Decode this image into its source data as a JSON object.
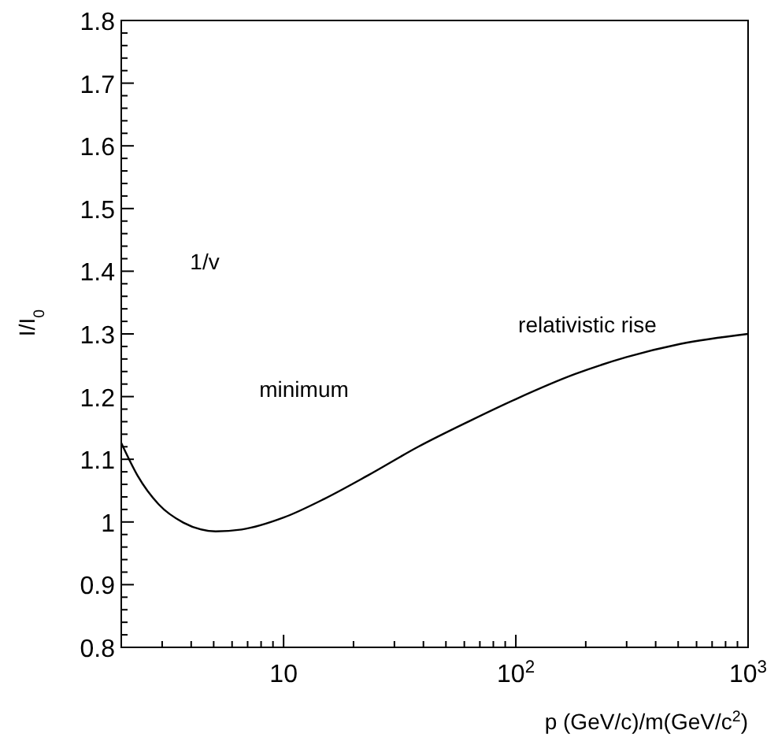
{
  "chart_data": {
    "type": "line",
    "xlabel": "p (GeV/c)/m(GeV/c$^{2}$)",
    "ylabel": "I/I$_{0}$",
    "log": "x",
    "grid": false,
    "marker": "none",
    "line_style": "solid",
    "xlim": [
      2,
      1000
    ],
    "ylim": [
      0.8,
      1.8
    ],
    "xticks": [
      {
        "value": 2,
        "label": null
      },
      {
        "value": 3,
        "label": null
      },
      {
        "value": 4,
        "label": null
      },
      {
        "value": 5,
        "label": null
      },
      {
        "value": 6,
        "label": null
      },
      {
        "value": 7,
        "label": null
      },
      {
        "value": 8,
        "label": null
      },
      {
        "value": 9,
        "label": null
      },
      {
        "value": 10,
        "label": "10"
      },
      {
        "value": 20,
        "label": null
      },
      {
        "value": 30,
        "label": null
      },
      {
        "value": 40,
        "label": null
      },
      {
        "value": 50,
        "label": null
      },
      {
        "value": 60,
        "label": null
      },
      {
        "value": 70,
        "label": null
      },
      {
        "value": 80,
        "label": null
      },
      {
        "value": 90,
        "label": null
      },
      {
        "value": 100,
        "label": "10$^{2}$"
      },
      {
        "value": 200,
        "label": null
      },
      {
        "value": 300,
        "label": null
      },
      {
        "value": 400,
        "label": null
      },
      {
        "value": 500,
        "label": null
      },
      {
        "value": 600,
        "label": null
      },
      {
        "value": 700,
        "label": null
      },
      {
        "value": 800,
        "label": null
      },
      {
        "value": 900,
        "label": null
      },
      {
        "value": 1000,
        "label": "10$^{3}$"
      }
    ],
    "yticks": [
      {
        "value": 0.8,
        "label": "0.8"
      },
      {
        "value": 0.82,
        "label": null
      },
      {
        "value": 0.84,
        "label": null
      },
      {
        "value": 0.86,
        "label": null
      },
      {
        "value": 0.88,
        "label": null
      },
      {
        "value": 0.9,
        "label": "0.9"
      },
      {
        "value": 0.92,
        "label": null
      },
      {
        "value": 0.94,
        "label": null
      },
      {
        "value": 0.96,
        "label": null
      },
      {
        "value": 0.98,
        "label": null
      },
      {
        "value": 1,
        "label": "1"
      },
      {
        "value": 1.02,
        "label": null
      },
      {
        "value": 1.04,
        "label": null
      },
      {
        "value": 1.06,
        "label": null
      },
      {
        "value": 1.08,
        "label": null
      },
      {
        "value": 1.1,
        "label": "1.1"
      },
      {
        "value": 1.12,
        "label": null
      },
      {
        "value": 1.14,
        "label": null
      },
      {
        "value": 1.16,
        "label": null
      },
      {
        "value": 1.18,
        "label": null
      },
      {
        "value": 1.2,
        "label": "1.2"
      },
      {
        "value": 1.22,
        "label": null
      },
      {
        "value": 1.24,
        "label": null
      },
      {
        "value": 1.26,
        "label": null
      },
      {
        "value": 1.28,
        "label": null
      },
      {
        "value": 1.3,
        "label": "1.3"
      },
      {
        "value": 1.32,
        "label": null
      },
      {
        "value": 1.34,
        "label": null
      },
      {
        "value": 1.36,
        "label": null
      },
      {
        "value": 1.38,
        "label": null
      },
      {
        "value": 1.4,
        "label": "1.4"
      },
      {
        "value": 1.42,
        "label": null
      },
      {
        "value": 1.44,
        "label": null
      },
      {
        "value": 1.46,
        "label": null
      },
      {
        "value": 1.48,
        "label": null
      },
      {
        "value": 1.5,
        "label": "1.5"
      },
      {
        "value": 1.52,
        "label": null
      },
      {
        "value": 1.54,
        "label": null
      },
      {
        "value": 1.56,
        "label": null
      },
      {
        "value": 1.58,
        "label": null
      },
      {
        "value": 1.6,
        "label": "1.6"
      },
      {
        "value": 1.62,
        "label": null
      },
      {
        "value": 1.64,
        "label": null
      },
      {
        "value": 1.66,
        "label": null
      },
      {
        "value": 1.68,
        "label": null
      },
      {
        "value": 1.7,
        "label": "1.7"
      },
      {
        "value": 1.72,
        "label": null
      },
      {
        "value": 1.74,
        "label": null
      },
      {
        "value": 1.76,
        "label": null
      },
      {
        "value": 1.78,
        "label": null
      },
      {
        "value": 1.8,
        "label": "1.8"
      }
    ],
    "x": [
      2,
      2.35,
      2.9,
      3.7,
      5.1,
      6.6,
      10,
      15,
      23,
      38,
      64,
      100,
      180,
      300,
      510,
      1000
    ],
    "series": [
      {
        "color": "#000000",
        "values": [
          1.126,
          1.074,
          1.028,
          0.999,
          0.985,
          0.988,
          1.007,
          1.037,
          1.074,
          1.12,
          1.162,
          1.196,
          1.236,
          1.263,
          1.284,
          1.3
        ]
      }
    ],
    "annotations": [
      "1/v",
      "minimum",
      "relativistic rise"
    ]
  }
}
